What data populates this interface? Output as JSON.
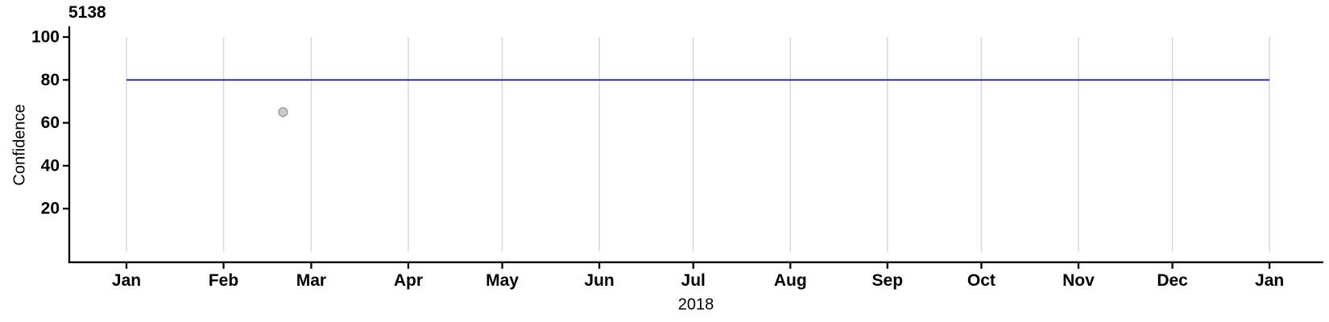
{
  "chart_data": {
    "type": "scatter",
    "title": "5138",
    "xlabel": "2018",
    "ylabel": "Confidence",
    "ylim": [
      0,
      100
    ],
    "y_ticks": [
      20,
      40,
      60,
      80,
      100
    ],
    "x_domain_days": [
      0,
      365
    ],
    "x_ticks": [
      {
        "label": "Jan",
        "day": 0
      },
      {
        "label": "Feb",
        "day": 31
      },
      {
        "label": "Mar",
        "day": 59
      },
      {
        "label": "Apr",
        "day": 90
      },
      {
        "label": "May",
        "day": 120
      },
      {
        "label": "Jun",
        "day": 151
      },
      {
        "label": "Jul",
        "day": 181
      },
      {
        "label": "Aug",
        "day": 212
      },
      {
        "label": "Sep",
        "day": 243
      },
      {
        "label": "Oct",
        "day": 273
      },
      {
        "label": "Nov",
        "day": 304
      },
      {
        "label": "Dec",
        "day": 334
      },
      {
        "label": "Jan",
        "day": 365
      }
    ],
    "gridlines": {
      "orientation": "vertical",
      "at_month_starts": true,
      "value_span": [
        0,
        100
      ],
      "color": "#d8d8d8"
    },
    "reference_line": {
      "value": 80,
      "from_day": 0,
      "to_day": 365,
      "color": "#0000cd"
    },
    "points": [
      {
        "day": 50,
        "value": 65,
        "fill": "#c9c9c9",
        "stroke": "#9e9e9e"
      }
    ],
    "colors": {
      "axis": "#000000",
      "text": "#000000"
    }
  }
}
